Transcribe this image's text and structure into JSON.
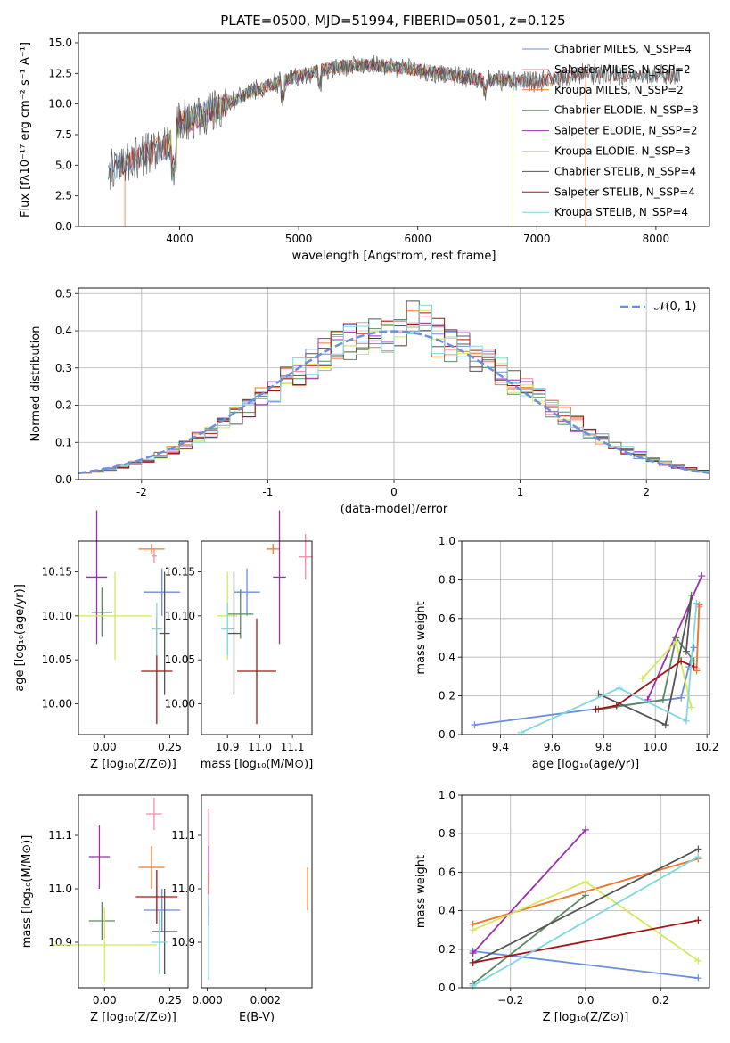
{
  "figure_title": "PLATE=0500, MJD=51994, FIBERID=0501, z=0.125",
  "colors": {
    "Chabrier MILES": "#6a8fdb",
    "Salpeter MILES": "#f28aa6",
    "Kroupa MILES": "#ee7a2a",
    "Chabrier ELODIE": "#5a8a63",
    "Salpeter ELODIE": "#9b2fb3",
    "Kroupa ELODIE": "#d4e85a",
    "Chabrier STELIB": "#555555",
    "Salpeter STELIB": "#a31515",
    "Kroupa STELIB": "#7fd7e0"
  },
  "chart_data": [
    {
      "type": "line",
      "title": "PLATE=0500, MJD=51994, FIBERID=0501, z=0.125",
      "xlabel": "wavelength [Angstrom, rest frame]",
      "ylabel": "Flux [fλ10⁻¹⁷ erg cm⁻² s⁻¹ A⁻¹]",
      "xlim": [
        3150,
        8450
      ],
      "ylim": [
        0,
        15.8
      ],
      "xticks": [
        4000,
        5000,
        6000,
        7000,
        8000
      ],
      "yticks": [
        0.0,
        2.5,
        5.0,
        7.5,
        10.0,
        12.5,
        15.0
      ],
      "legend": [
        "Chabrier MILES, N_SSP=4",
        "Salpeter MILES, N_SSP=2",
        "Kroupa MILES, N_SSP=2",
        "Chabrier ELODIE, N_SSP=3",
        "Salpeter ELODIE, N_SSP=2",
        "Kroupa ELODIE, N_SSP=3",
        "Chabrier STELIB, N_SSP=4",
        "Salpeter STELIB, N_SSP=4",
        "Kroupa STELIB, N_SSP=4"
      ],
      "legend_placement": "upper right",
      "series_ranges": [
        {
          "name": "Chabrier MILES",
          "x": [
            3400,
            7400
          ]
        },
        {
          "name": "Salpeter MILES",
          "x": [
            3540,
            7410
          ]
        },
        {
          "name": "Kroupa MILES",
          "x": [
            3540,
            7410
          ]
        },
        {
          "name": "Chabrier ELODIE",
          "x": [
            3900,
            6800
          ]
        },
        {
          "name": "Salpeter ELODIE",
          "x": [
            3900,
            6800
          ]
        },
        {
          "name": "Kroupa ELODIE",
          "x": [
            3900,
            6800
          ]
        },
        {
          "name": "Chabrier STELIB",
          "x": [
            3400,
            8200
          ]
        },
        {
          "name": "Salpeter STELIB",
          "x": [
            3400,
            8200
          ]
        },
        {
          "name": "Kroupa STELIB",
          "x": [
            3400,
            8200
          ]
        }
      ],
      "continuum": [
        [
          3400,
          4.5
        ],
        [
          3600,
          5.5
        ],
        [
          3900,
          6.5
        ],
        [
          4000,
          8.5
        ],
        [
          4300,
          9.5
        ],
        [
          4600,
          11.0
        ],
        [
          5000,
          12.3
        ],
        [
          5300,
          13.0
        ],
        [
          5600,
          13.2
        ],
        [
          6000,
          12.8
        ],
        [
          6500,
          12.0
        ],
        [
          7000,
          11.8
        ],
        [
          7400,
          12.5
        ],
        [
          7800,
          12.3
        ],
        [
          8200,
          12.4
        ]
      ]
    },
    {
      "type": "histogram",
      "xlabel": "(data-model)/error",
      "ylabel": "Normed distribution",
      "xlim": [
        -2.5,
        2.5
      ],
      "ylim": [
        0,
        0.515
      ],
      "xticks": [
        -2,
        -1,
        0,
        1,
        2
      ],
      "yticks": [
        0.0,
        0.1,
        0.2,
        0.3,
        0.4,
        0.5
      ],
      "legend": [
        "𝒩(0, 1)"
      ],
      "legend_placement": "upper right",
      "grid": true
    },
    {
      "type": "scatter-errorbar",
      "xlabel": "Z [log₁₀(Z/Z⊙)]",
      "ylabel": "age  [log₁₀(age/yr)]",
      "xlim": [
        -0.1,
        0.32
      ],
      "ylim": [
        9.965,
        10.185
      ],
      "xticks": [
        0.0,
        0.25
      ],
      "xticklabels": [
        "0.00",
        "0.25"
      ],
      "yticks": [
        10.0,
        10.05,
        10.1,
        10.15
      ],
      "yticklabels": [
        "10.00",
        "10.05",
        "10.10",
        "10.15"
      ],
      "points": [
        {
          "name": "Chabrier MILES",
          "x": 0.22,
          "y": 10.127,
          "xerr": 0.07,
          "yerr": 0.027
        },
        {
          "name": "Salpeter MILES",
          "x": 0.19,
          "y": 10.168,
          "xerr": 0.01,
          "yerr": 0.008
        },
        {
          "name": "Kroupa MILES",
          "x": 0.18,
          "y": 10.176,
          "xerr": 0.05,
          "yerr": 0.006
        },
        {
          "name": "Chabrier ELODIE",
          "x": -0.01,
          "y": 10.104,
          "xerr": 0.04,
          "yerr": 0.028
        },
        {
          "name": "Salpeter ELODIE",
          "x": -0.03,
          "y": 10.144,
          "xerr": 0.04,
          "yerr": 0.076
        },
        {
          "name": "Kroupa ELODIE",
          "x": 0.04,
          "y": 10.1,
          "xerr": 0.14,
          "yerr": 0.05
        },
        {
          "name": "Chabrier STELIB",
          "x": 0.23,
          "y": 10.08,
          "xerr": 0.02,
          "yerr": 0.07
        },
        {
          "name": "Salpeter STELIB",
          "x": 0.2,
          "y": 10.037,
          "xerr": 0.06,
          "yerr": 0.06
        },
        {
          "name": "Kroupa STELIB",
          "x": 0.2,
          "y": 10.085,
          "xerr": 0.02,
          "yerr": 0.03
        }
      ]
    },
    {
      "type": "scatter-errorbar",
      "xlabel": "mass [log₁₀(M/M⊙)]",
      "ylabel": "",
      "xlim": [
        10.82,
        11.16
      ],
      "ylim": [
        9.965,
        10.185
      ],
      "xticks": [
        10.9,
        11.0,
        11.1
      ],
      "xticklabels": [
        "10.9",
        "11.0",
        "11.1"
      ],
      "yticks": [
        10.0,
        10.05,
        10.1,
        10.15
      ],
      "yticklabels": [
        "10.00",
        "10.05",
        "10.10",
        "10.15"
      ],
      "points": [
        {
          "name": "Chabrier MILES",
          "x": 10.96,
          "y": 10.127,
          "xerr": 0.04,
          "yerr": 0.027
        },
        {
          "name": "Salpeter MILES",
          "x": 11.14,
          "y": 10.167,
          "xerr": 0.02,
          "yerr": 0.026
        },
        {
          "name": "Kroupa MILES",
          "x": 11.04,
          "y": 10.176,
          "xerr": 0.02,
          "yerr": 0.006
        },
        {
          "name": "Chabrier ELODIE",
          "x": 10.94,
          "y": 10.102,
          "xerr": 0.04,
          "yerr": 0.028
        },
        {
          "name": "Salpeter ELODIE",
          "x": 11.06,
          "y": 10.144,
          "xerr": 0.02,
          "yerr": 0.076
        },
        {
          "name": "Kroupa ELODIE",
          "x": 10.9,
          "y": 10.1,
          "xerr": 0.03,
          "yerr": 0.05
        },
        {
          "name": "Chabrier STELIB",
          "x": 10.92,
          "y": 10.08,
          "xerr": 0.02,
          "yerr": 0.07
        },
        {
          "name": "Salpeter STELIB",
          "x": 10.99,
          "y": 10.037,
          "xerr": 0.06,
          "yerr": 0.06
        },
        {
          "name": "Kroupa STELIB",
          "x": 10.9,
          "y": 10.085,
          "xerr": 0.02,
          "yerr": 0.03
        }
      ]
    },
    {
      "type": "line",
      "xlabel": "age  [log₁₀(age/yr)]",
      "ylabel": "mass weight",
      "xlim": [
        9.25,
        10.21
      ],
      "ylim": [
        0,
        1.0
      ],
      "xticks": [
        9.4,
        9.6,
        9.8,
        10.0,
        10.2
      ],
      "xticklabels": [
        "9.4",
        "9.6",
        "9.8",
        "10.0",
        "10.2"
      ],
      "yticks": [
        0.0,
        0.2,
        0.4,
        0.6,
        0.8,
        1.0
      ],
      "yticklabels": [
        "0.0",
        "0.2",
        "0.4",
        "0.6",
        "0.8",
        "1.0"
      ],
      "grid": true,
      "series": [
        {
          "name": "Chabrier MILES",
          "x": [
            9.3,
            10.1,
            10.13,
            10.15
          ],
          "y": [
            0.05,
            0.19,
            0.35,
            0.45
          ]
        },
        {
          "name": "Salpeter MILES",
          "x": [
            10.16,
            10.17
          ],
          "y": [
            0.34,
            0.66
          ]
        },
        {
          "name": "Kroupa MILES",
          "x": [
            10.16,
            10.17
          ],
          "y": [
            0.33,
            0.67
          ]
        },
        {
          "name": "Chabrier ELODIE",
          "x": [
            9.78,
            10.03,
            10.08,
            10.15
          ],
          "y": [
            0.13,
            0.18,
            0.5,
            0.38
          ]
        },
        {
          "name": "Salpeter ELODIE",
          "x": [
            9.97,
            10.18
          ],
          "y": [
            0.18,
            0.82
          ]
        },
        {
          "name": "Kroupa ELODIE",
          "x": [
            9.95,
            10.08,
            10.14
          ],
          "y": [
            0.29,
            0.48,
            0.14
          ]
        },
        {
          "name": "Chabrier STELIB",
          "x": [
            9.78,
            10.04,
            10.14,
            10.12
          ],
          "y": [
            0.21,
            0.05,
            0.72,
            0.43
          ]
        },
        {
          "name": "Salpeter STELIB",
          "x": [
            9.77,
            9.85,
            10.1,
            10.15
          ],
          "y": [
            0.13,
            0.15,
            0.38,
            0.35
          ]
        },
        {
          "name": "Kroupa STELIB",
          "x": [
            9.48,
            9.86,
            10.12,
            10.16
          ],
          "y": [
            0.01,
            0.24,
            0.07,
            0.68
          ]
        }
      ]
    },
    {
      "type": "scatter-errorbar",
      "xlabel": "Z [log₁₀(Z/Z⊙)]",
      "ylabel": "mass [log₁₀(M/M⊙)]",
      "xlim": [
        -0.1,
        0.32
      ],
      "ylim": [
        10.815,
        11.175
      ],
      "xticks": [
        0.0,
        0.25
      ],
      "xticklabels": [
        "0.00",
        "0.25"
      ],
      "yticks": [
        10.9,
        11.0,
        11.1
      ],
      "yticklabels": [
        "10.9",
        "11.0",
        "11.1"
      ],
      "points": [
        {
          "name": "Chabrier MILES",
          "x": 0.22,
          "y": 10.96,
          "xerr": 0.07,
          "yerr": 0.04
        },
        {
          "name": "Salpeter MILES",
          "x": 0.19,
          "y": 11.14,
          "xerr": 0.03,
          "yerr": 0.03
        },
        {
          "name": "Kroupa MILES",
          "x": 0.18,
          "y": 11.04,
          "xerr": 0.05,
          "yerr": 0.04
        },
        {
          "name": "Chabrier ELODIE",
          "x": -0.01,
          "y": 10.94,
          "xerr": 0.05,
          "yerr": 0.035
        },
        {
          "name": "Salpeter ELODIE",
          "x": -0.02,
          "y": 11.06,
          "xerr": 0.04,
          "yerr": 0.06
        },
        {
          "name": "Kroupa ELODIE",
          "x": 0.0,
          "y": 10.895,
          "xerr": 0.2,
          "yerr": 0.07
        },
        {
          "name": "Chabrier STELIB",
          "x": 0.23,
          "y": 10.92,
          "xerr": 0.05,
          "yerr": 0.08
        },
        {
          "name": "Salpeter STELIB",
          "x": 0.2,
          "y": 10.985,
          "xerr": 0.08,
          "yerr": 0.05
        },
        {
          "name": "Kroupa STELIB",
          "x": 0.21,
          "y": 10.9,
          "xerr": 0.03,
          "yerr": 0.06
        }
      ]
    },
    {
      "type": "scatter-errorbar",
      "xlabel": "E(B-V)",
      "ylabel": "",
      "xlim": [
        -0.0002,
        0.0036
      ],
      "ylim": [
        10.815,
        11.175
      ],
      "xticks": [
        0.0,
        0.002
      ],
      "xticklabels": [
        "0.000",
        "0.002"
      ],
      "yticks": [
        10.9,
        11.0,
        11.1
      ],
      "yticklabels": [
        "10.9",
        "11.0",
        "11.1"
      ],
      "points": [
        {
          "name": "Salpeter MILES",
          "x": 5e-05,
          "y": 11.08,
          "xerr": 0,
          "yerr": 0.07
        },
        {
          "name": "Kroupa MILES",
          "x": 0.00345,
          "y": 11.0,
          "xerr": 0,
          "yerr": 0.04
        },
        {
          "name": "Salpeter ELODIE",
          "x": 5e-05,
          "y": 11.03,
          "xerr": 0,
          "yerr": 0.05
        },
        {
          "name": "Salpeter STELIB",
          "x": 5e-05,
          "y": 10.99,
          "xerr": 0,
          "yerr": 0.04
        },
        {
          "name": "Kroupa STELIB",
          "x": 5e-05,
          "y": 10.9,
          "xerr": 0,
          "yerr": 0.07
        },
        {
          "name": "Chabrier MILES",
          "x": 5e-05,
          "y": 10.96,
          "xerr": 0,
          "yerr": 0.03
        }
      ]
    },
    {
      "type": "line",
      "xlabel": "Z [log₁₀(Z/Z⊙)]",
      "ylabel": "mass weight",
      "xlim": [
        -0.33,
        0.33
      ],
      "ylim": [
        0,
        1.0
      ],
      "xticks": [
        -0.2,
        0.0,
        0.2
      ],
      "xticklabels": [
        "−0.2",
        "0.0",
        "0.2"
      ],
      "yticks": [
        0.0,
        0.2,
        0.4,
        0.6,
        0.8,
        1.0
      ],
      "yticklabels": [
        "0.0",
        "0.2",
        "0.4",
        "0.6",
        "0.8",
        "1.0"
      ],
      "grid": true,
      "series": [
        {
          "name": "Chabrier MILES",
          "x": [
            -0.3,
            0.3
          ],
          "y": [
            0.19,
            0.05
          ]
        },
        {
          "name": "Salpeter MILES",
          "x": [
            -0.3,
            0.3
          ],
          "y": [
            0.33,
            0.67
          ]
        },
        {
          "name": "Kroupa MILES",
          "x": [
            -0.3,
            0.3
          ],
          "y": [
            0.33,
            0.67
          ]
        },
        {
          "name": "Chabrier ELODIE",
          "x": [
            -0.3,
            0.0
          ],
          "y": [
            0.02,
            0.48
          ]
        },
        {
          "name": "Salpeter ELODIE",
          "x": [
            -0.3,
            0.0
          ],
          "y": [
            0.18,
            0.82
          ]
        },
        {
          "name": "Kroupa ELODIE",
          "x": [
            -0.3,
            0.0,
            0.3
          ],
          "y": [
            0.3,
            0.55,
            0.14
          ]
        },
        {
          "name": "Chabrier STELIB",
          "x": [
            -0.3,
            0.3
          ],
          "y": [
            0.13,
            0.72
          ]
        },
        {
          "name": "Salpeter STELIB",
          "x": [
            -0.3,
            0.3
          ],
          "y": [
            0.13,
            0.35
          ]
        },
        {
          "name": "Kroupa STELIB",
          "x": [
            -0.3,
            0.3
          ],
          "y": [
            0.01,
            0.68
          ]
        }
      ]
    }
  ]
}
